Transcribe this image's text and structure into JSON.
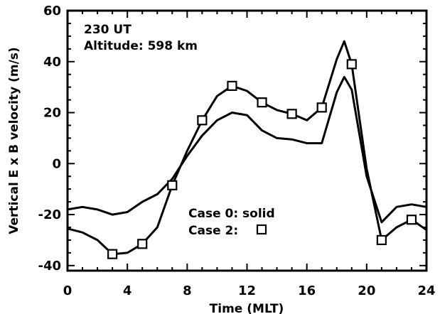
{
  "chart_data": {
    "type": "line",
    "xlabel": "Time (MLT)",
    "ylabel": "Vertical E x B velocity (m/s)",
    "xlim": [
      0,
      24
    ],
    "ylim": [
      -42,
      60
    ],
    "xticks": [
      0,
      4,
      8,
      12,
      16,
      20,
      24
    ],
    "xtick_labels": [
      "0",
      "4",
      "8",
      "12",
      "16",
      "20",
      "24"
    ],
    "yticks": [
      -40,
      -20,
      0,
      20,
      40,
      60
    ],
    "ytick_labels": [
      "-40",
      "-20",
      "0",
      "20",
      "40",
      "60"
    ],
    "annotations": {
      "time": "230 UT",
      "altitude": "Altitude: 598 km"
    },
    "legend": {
      "case0": "Case 0: solid",
      "case2_label": "Case 2:",
      "case2_symbol": "square"
    },
    "series": [
      {
        "name": "Case 0",
        "style": "solid",
        "x": [
          0,
          1,
          2,
          3,
          4,
          5,
          6,
          7,
          8,
          9,
          10,
          11,
          12,
          13,
          14,
          15,
          16,
          17,
          18,
          18.5,
          19,
          20,
          21,
          22,
          23,
          24
        ],
        "y": [
          -18,
          -17,
          -18,
          -20,
          -19,
          -15,
          -12,
          -6,
          3,
          11,
          17,
          20,
          19,
          13,
          10,
          9.5,
          8,
          8,
          28,
          34,
          29,
          -5,
          -23,
          -17,
          -16,
          -17
        ]
      },
      {
        "name": "Case 2",
        "style": "solid-with-squares",
        "x": [
          0,
          1,
          2,
          3,
          4,
          5,
          6,
          7,
          8,
          9,
          10,
          11,
          12,
          13,
          14,
          15,
          16,
          17,
          18,
          18.5,
          19,
          20,
          21,
          22,
          23,
          24
        ],
        "y": [
          -25.5,
          -27,
          -30,
          -35.5,
          -35,
          -31.5,
          -25,
          -8.5,
          5,
          17,
          26.5,
          30.5,
          28.5,
          24,
          21,
          19.5,
          17,
          22,
          41,
          48,
          39,
          -2,
          -30,
          -25,
          -22,
          -26
        ],
        "markers": {
          "x": [
            3,
            5,
            7,
            9,
            11,
            13,
            15,
            17,
            19,
            21,
            23
          ],
          "y": [
            -35.5,
            -31.5,
            -8.5,
            17,
            30.5,
            24,
            19.5,
            22,
            39,
            -30,
            -22
          ]
        }
      }
    ],
    "grid": false
  }
}
